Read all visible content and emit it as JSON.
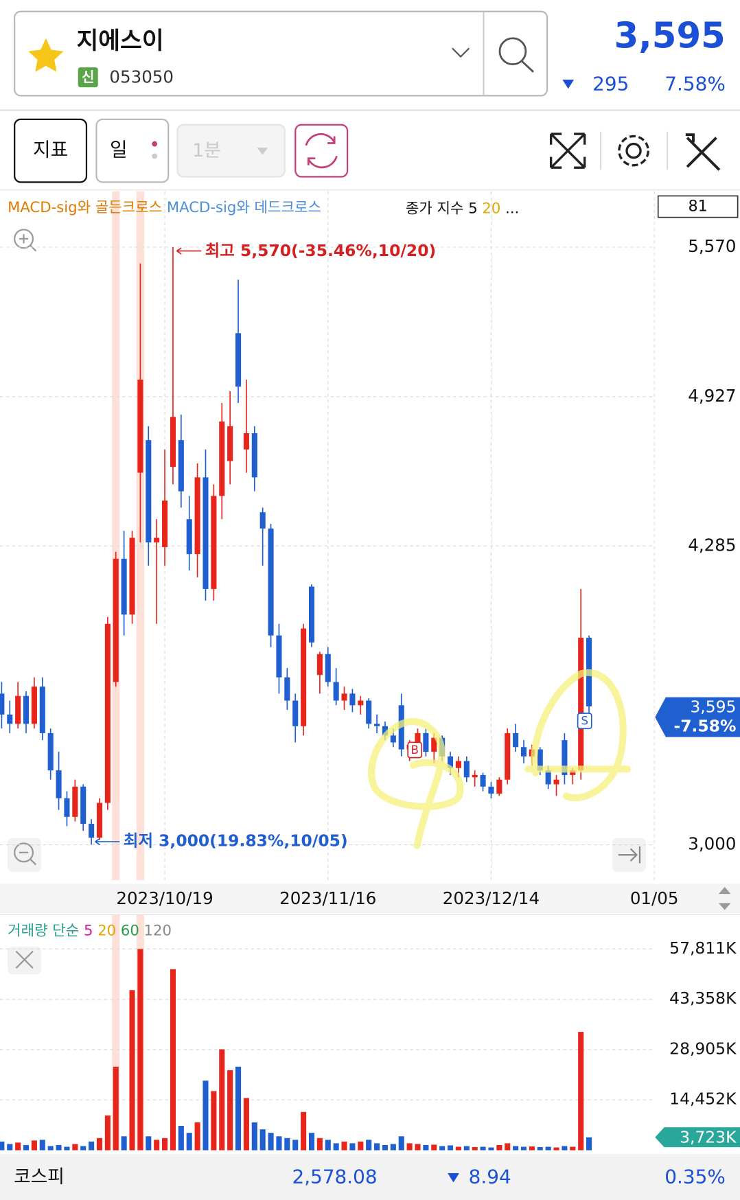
{
  "header": {
    "name": "지에스이",
    "badge": "신",
    "code": "053050",
    "price": "3,595",
    "change": "295",
    "change_pct": "7.58%"
  },
  "toolbar": {
    "indicator": "지표",
    "period": "일",
    "interval": "1분"
  },
  "chart_data": {
    "type": "candlestick",
    "indicator_legend": [
      {
        "text": "MACD-sig와 골든크로스",
        "color": "#e07b00"
      },
      {
        "text": "MACD-sig와 데드크로스",
        "color": "#4a8fd8"
      }
    ],
    "ma_legend": [
      {
        "text": "종가 지수 5 ",
        "color": "#111111"
      },
      {
        "text": "20",
        "color": "#e0a800"
      },
      {
        "text": " ...",
        "color": "#111111"
      }
    ],
    "count_box": "81",
    "up_color": "#e8251b",
    "down_color": "#1f5fd0",
    "xlim": [
      -0.2,
      80
    ],
    "xticks": [
      {
        "value": 20,
        "label": "2023/10/19"
      },
      {
        "value": 40,
        "label": "2023/11/16"
      },
      {
        "value": 60,
        "label": "2023/12/14"
      },
      {
        "value": 80,
        "label": "01/05"
      }
    ],
    "ylim": [
      2848,
      5810
    ],
    "yticks": [
      {
        "value": 5570,
        "label": "5,570"
      },
      {
        "value": 4927,
        "label": "4,927"
      },
      {
        "value": 4285,
        "label": "4,285"
      },
      {
        "value": 3000,
        "label": "3,000"
      }
    ],
    "grid": true,
    "signal_bars": [
      14,
      17
    ],
    "ohlc": [
      [
        3650,
        3700,
        3500,
        3560
      ],
      [
        3560,
        3620,
        3480,
        3520
      ],
      [
        3520,
        3700,
        3500,
        3640
      ],
      [
        3640,
        3660,
        3480,
        3520
      ],
      [
        3520,
        3720,
        3500,
        3680
      ],
      [
        3680,
        3720,
        3450,
        3480
      ],
      [
        3480,
        3500,
        3280,
        3320
      ],
      [
        3320,
        3400,
        3150,
        3200
      ],
      [
        3200,
        3230,
        3080,
        3120
      ],
      [
        3120,
        3280,
        3100,
        3250
      ],
      [
        3250,
        3260,
        3060,
        3090
      ],
      [
        3090,
        3110,
        3000,
        3030
      ],
      [
        3030,
        3200,
        3020,
        3180
      ],
      [
        3180,
        3980,
        3150,
        3950
      ],
      [
        3700,
        4260,
        3680,
        4230
      ],
      [
        4230,
        4350,
        3900,
        3990
      ],
      [
        3990,
        4350,
        3950,
        4320
      ],
      [
        4600,
        5500,
        4300,
        5000
      ],
      [
        4740,
        4800,
        4200,
        4300
      ],
      [
        4300,
        4400,
        3950,
        4320
      ],
      [
        4280,
        4700,
        4200,
        4480
      ],
      [
        4625,
        5570,
        4550,
        4840
      ],
      [
        4740,
        4850,
        4450,
        4520
      ],
      [
        4400,
        4500,
        4180,
        4250
      ],
      [
        4250,
        4640,
        4150,
        4580
      ],
      [
        4580,
        4700,
        4050,
        4100
      ],
      [
        4100,
        4550,
        4050,
        4500
      ],
      [
        4500,
        4900,
        4400,
        4820
      ],
      [
        4650,
        4950,
        4550,
        4800
      ],
      [
        5200,
        5430,
        4900,
        4970
      ],
      [
        4700,
        5000,
        4600,
        4770
      ],
      [
        4770,
        4800,
        4520,
        4580
      ],
      [
        4430,
        4450,
        4200,
        4360
      ],
      [
        4360,
        4380,
        3850,
        3900
      ],
      [
        3900,
        3950,
        3650,
        3720
      ],
      [
        3720,
        3760,
        3580,
        3620
      ],
      [
        3620,
        3650,
        3440,
        3510
      ],
      [
        3510,
        3950,
        3470,
        3930
      ],
      [
        4110,
        4120,
        3850,
        3870
      ],
      [
        3730,
        3830,
        3650,
        3820
      ],
      [
        3820,
        3850,
        3680,
        3700
      ],
      [
        3700,
        3760,
        3600,
        3620
      ],
      [
        3620,
        3680,
        3580,
        3650
      ],
      [
        3650,
        3670,
        3570,
        3600
      ],
      [
        3600,
        3640,
        3560,
        3620
      ],
      [
        3620,
        3630,
        3500,
        3520
      ],
      [
        3520,
        3560,
        3480,
        3510
      ],
      [
        3510,
        3530,
        3450,
        3470
      ],
      [
        3470,
        3500,
        3420,
        3440
      ],
      [
        3600,
        3650,
        3380,
        3410
      ],
      [
        3410,
        3450,
        3360,
        3430
      ],
      [
        3430,
        3500,
        3400,
        3480
      ],
      [
        3480,
        3500,
        3380,
        3400
      ],
      [
        3400,
        3480,
        3350,
        3460
      ],
      [
        3460,
        3470,
        3360,
        3380
      ],
      [
        3380,
        3400,
        3300,
        3330
      ],
      [
        3330,
        3380,
        3290,
        3360
      ],
      [
        3360,
        3380,
        3270,
        3290
      ],
      [
        3290,
        3320,
        3250,
        3300
      ],
      [
        3300,
        3310,
        3230,
        3250
      ],
      [
        3250,
        3270,
        3200,
        3220
      ],
      [
        3220,
        3290,
        3210,
        3280
      ],
      [
        3280,
        3500,
        3260,
        3480
      ],
      [
        3480,
        3520,
        3400,
        3420
      ],
      [
        3420,
        3450,
        3350,
        3380
      ],
      [
        3380,
        3430,
        3340,
        3410
      ],
      [
        3410,
        3420,
        3300,
        3320
      ],
      [
        3320,
        3340,
        3240,
        3260
      ],
      [
        3260,
        3300,
        3210,
        3280
      ],
      [
        3450,
        3480,
        3260,
        3300
      ],
      [
        3300,
        3330,
        3260,
        3320
      ],
      [
        3320,
        4100,
        3280,
        3890
      ],
      [
        3890,
        3900,
        3560,
        3595
      ]
    ],
    "annotations": {
      "high": "최고 5,570(-35.46%,10/20)",
      "low": "최저 3,000(19.83%,10/05)"
    },
    "last_price_label": "3,595",
    "last_change_label": "-7.58%",
    "volume": {
      "legend": [
        {
          "text": "거래량 단순 ",
          "color": "#2a9d8f"
        },
        {
          "text": "5 ",
          "color": "#d0209a"
        },
        {
          "text": "20 ",
          "color": "#e0a800"
        },
        {
          "text": "60 ",
          "color": "#2a9d4a"
        },
        {
          "text": "120",
          "color": "#888888"
        }
      ],
      "ylim": [
        0,
        67700
      ],
      "yticks": [
        {
          "value": 57811,
          "label": "57,811K"
        },
        {
          "value": 43358,
          "label": "43,358K"
        },
        {
          "value": 28905,
          "label": "28,905K"
        },
        {
          "value": 14452,
          "label": "14,452K"
        }
      ],
      "values": [
        2500,
        1800,
        2200,
        1500,
        2800,
        3000,
        1200,
        1500,
        1000,
        1800,
        1200,
        2500,
        3500,
        10000,
        24000,
        4000,
        46000,
        57800,
        4000,
        3000,
        3500,
        52000,
        7000,
        5000,
        8000,
        20000,
        17000,
        29000,
        23000,
        24000,
        15000,
        8000,
        6000,
        5000,
        4000,
        3500,
        3000,
        11000,
        5000,
        3500,
        3000,
        2000,
        2500,
        2000,
        2500,
        3000,
        2000,
        1500,
        1800,
        4000,
        2000,
        1800,
        1500,
        1600,
        1200,
        1400,
        1000,
        1200,
        900,
        1000,
        800,
        1500,
        2000,
        1200,
        1000,
        1100,
        900,
        1000,
        800,
        1200,
        1000,
        34000,
        3723
      ],
      "last_label": "3,723K"
    }
  },
  "footer": {
    "index": "코스피",
    "value": "2,578.08",
    "change": "8.94",
    "change_pct": "0.35%"
  }
}
